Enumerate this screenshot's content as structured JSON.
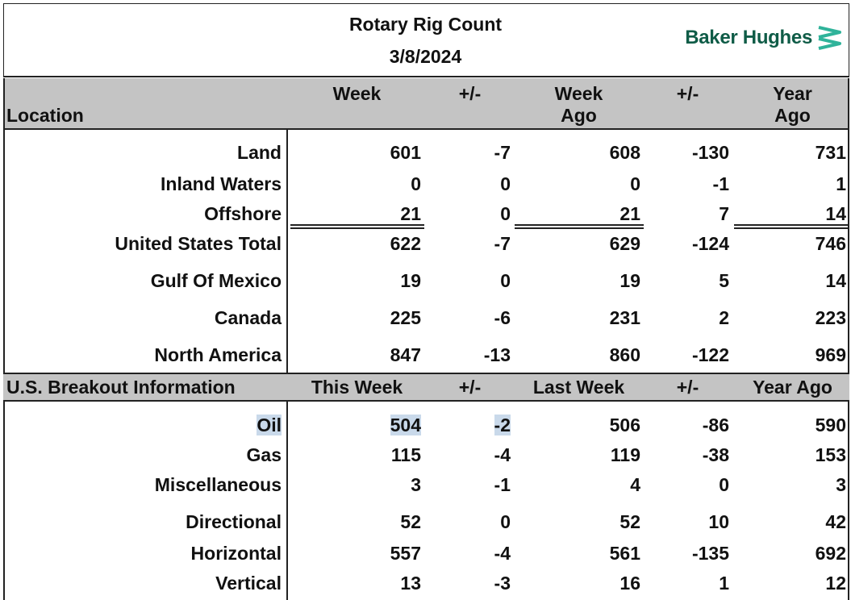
{
  "header": {
    "title": "Rotary Rig Count",
    "date": "3/8/2024",
    "brand": "Baker Hughes",
    "brand_color": "#0f5c47",
    "brand_icon": "baker-hughes-chevron-logo"
  },
  "location_table": {
    "location_label": "Location",
    "columns": [
      "Week",
      "+/-",
      "Week Ago",
      "+/-",
      "Year Ago"
    ],
    "col_week": "Week",
    "col_pm1": "+/-",
    "col_weekago_1": "Week",
    "col_weekago_2": "Ago",
    "col_pm2": "+/-",
    "col_yearago_1": "Year",
    "col_yearago_2": "Ago",
    "rows": [
      {
        "label": "Land",
        "week": "601",
        "pm1": "-7",
        "week_ago": "608",
        "pm2": "-130",
        "year_ago": "731"
      },
      {
        "label": "Inland Waters",
        "week": "0",
        "pm1": "0",
        "week_ago": "0",
        "pm2": "-1",
        "year_ago": "1"
      },
      {
        "label": "Offshore",
        "week": "21",
        "pm1": "0",
        "week_ago": "21",
        "pm2": "7",
        "year_ago": "14"
      },
      {
        "label": "United States Total",
        "week": "622",
        "pm1": "-7",
        "week_ago": "629",
        "pm2": "-124",
        "year_ago": "746"
      },
      {
        "label": "Gulf Of Mexico",
        "week": "19",
        "pm1": "0",
        "week_ago": "19",
        "pm2": "5",
        "year_ago": "14"
      },
      {
        "label": "Canada",
        "week": "225",
        "pm1": "-6",
        "week_ago": "231",
        "pm2": "2",
        "year_ago": "223"
      },
      {
        "label": "North America",
        "week": "847",
        "pm1": "-13",
        "week_ago": "860",
        "pm2": "-122",
        "year_ago": "969"
      }
    ]
  },
  "breakout_table": {
    "section_label": "U.S. Breakout Information",
    "col_this_week": "This Week",
    "col_pm1": "+/-",
    "col_last_week": "Last Week",
    "col_pm2": "+/-",
    "col_year_ago": "Year Ago",
    "rows": [
      {
        "label": "Oil",
        "this_week": "504",
        "pm1": "-2",
        "last_week": "506",
        "pm2": "-86",
        "year_ago": "590"
      },
      {
        "label": "Gas",
        "this_week": "115",
        "pm1": "-4",
        "last_week": "119",
        "pm2": "-38",
        "year_ago": "153"
      },
      {
        "label": "Miscellaneous",
        "this_week": "3",
        "pm1": "-1",
        "last_week": "4",
        "pm2": "0",
        "year_ago": "3"
      },
      {
        "label": "Directional",
        "this_week": "52",
        "pm1": "0",
        "last_week": "52",
        "pm2": "10",
        "year_ago": "42"
      },
      {
        "label": "Horizontal",
        "this_week": "557",
        "pm1": "-4",
        "last_week": "561",
        "pm2": "-135",
        "year_ago": "692"
      },
      {
        "label": "Vertical",
        "this_week": "13",
        "pm1": "-3",
        "last_week": "16",
        "pm2": "1",
        "year_ago": "12"
      }
    ]
  },
  "highlight_color": "#c9d9ea"
}
